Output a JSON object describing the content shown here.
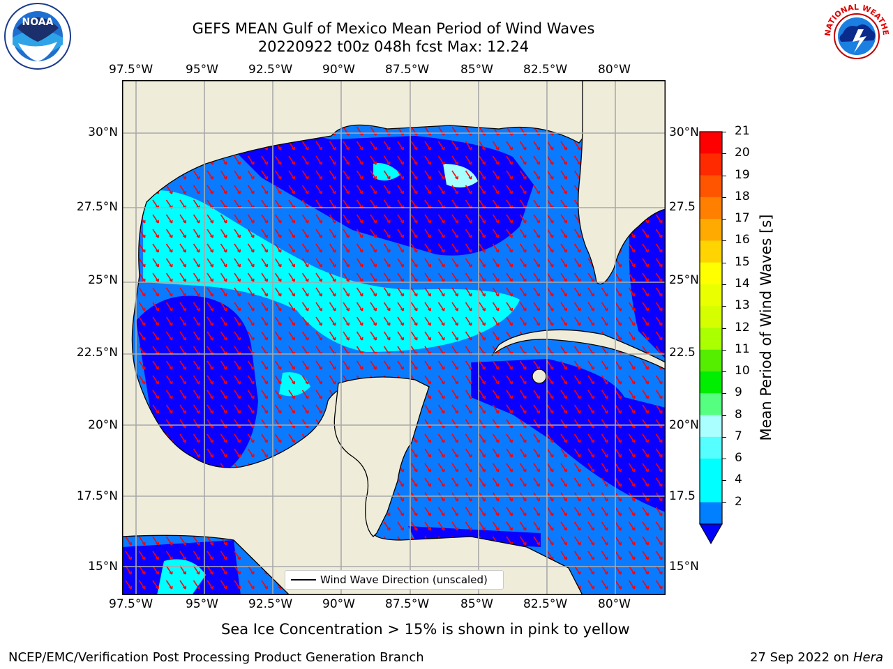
{
  "header": {
    "title_line1": "GEFS MEAN Gulf of Mexico Mean Period of Wind Waves",
    "title_line2": "20220922 t00z 048h fcst   Max: 12.24"
  },
  "logos": {
    "left": "NOAA",
    "right": "NATIONAL WEATHER SERVICE"
  },
  "map": {
    "lon_labels": [
      "97.5°W",
      "95°W",
      "92.5°W",
      "90°W",
      "87.5°W",
      "85°W",
      "82.5°W",
      "80°W"
    ],
    "lat_labels": [
      "30°N",
      "27.5°N",
      "25°N",
      "22.5°N",
      "20°N",
      "17.5°N",
      "15°N"
    ],
    "right_lat_labels": [
      "30°N",
      "27.5",
      "25°N",
      "22.5",
      "20°N",
      "17.5",
      "15°N"
    ],
    "legend_label": "Wind Wave Direction (unscaled)"
  },
  "colorbar": {
    "label": "Mean Period of Wind Waves [s]",
    "ticks": [
      "21",
      "20",
      "19",
      "18",
      "17",
      "16",
      "15",
      "14",
      "13",
      "12",
      "11",
      "10",
      "9",
      "8",
      "7",
      "6",
      "4",
      "2"
    ],
    "colors": [
      "#ff0000",
      "#ff2a00",
      "#ff5500",
      "#ff8000",
      "#ffaa00",
      "#ffd400",
      "#ffff00",
      "#eaff00",
      "#d5ff00",
      "#aaff00",
      "#55ee00",
      "#00ee00",
      "#55ff80",
      "#aaffff",
      "#55ffff",
      "#00ffff",
      "#00ffff",
      "#0080ff",
      "#0000ff"
    ]
  },
  "notes": {
    "sea_ice": "Sea Ice Concentration > 15% is shown in pink to yellow",
    "branch": "NCEP/EMC/Verification Post Processing Product Generation Branch",
    "date": "27 Sep 2022 on ",
    "host": "Hera"
  },
  "palette": {
    "land": "#efedda",
    "deep_blue": "#0a00ff",
    "mid_blue": "#0a7bff",
    "cyan": "#00ffff",
    "light_cyan": "#a6ffff",
    "green": "#55ff80",
    "arrow": "#ff0000",
    "grid": "#a9a9a9"
  }
}
